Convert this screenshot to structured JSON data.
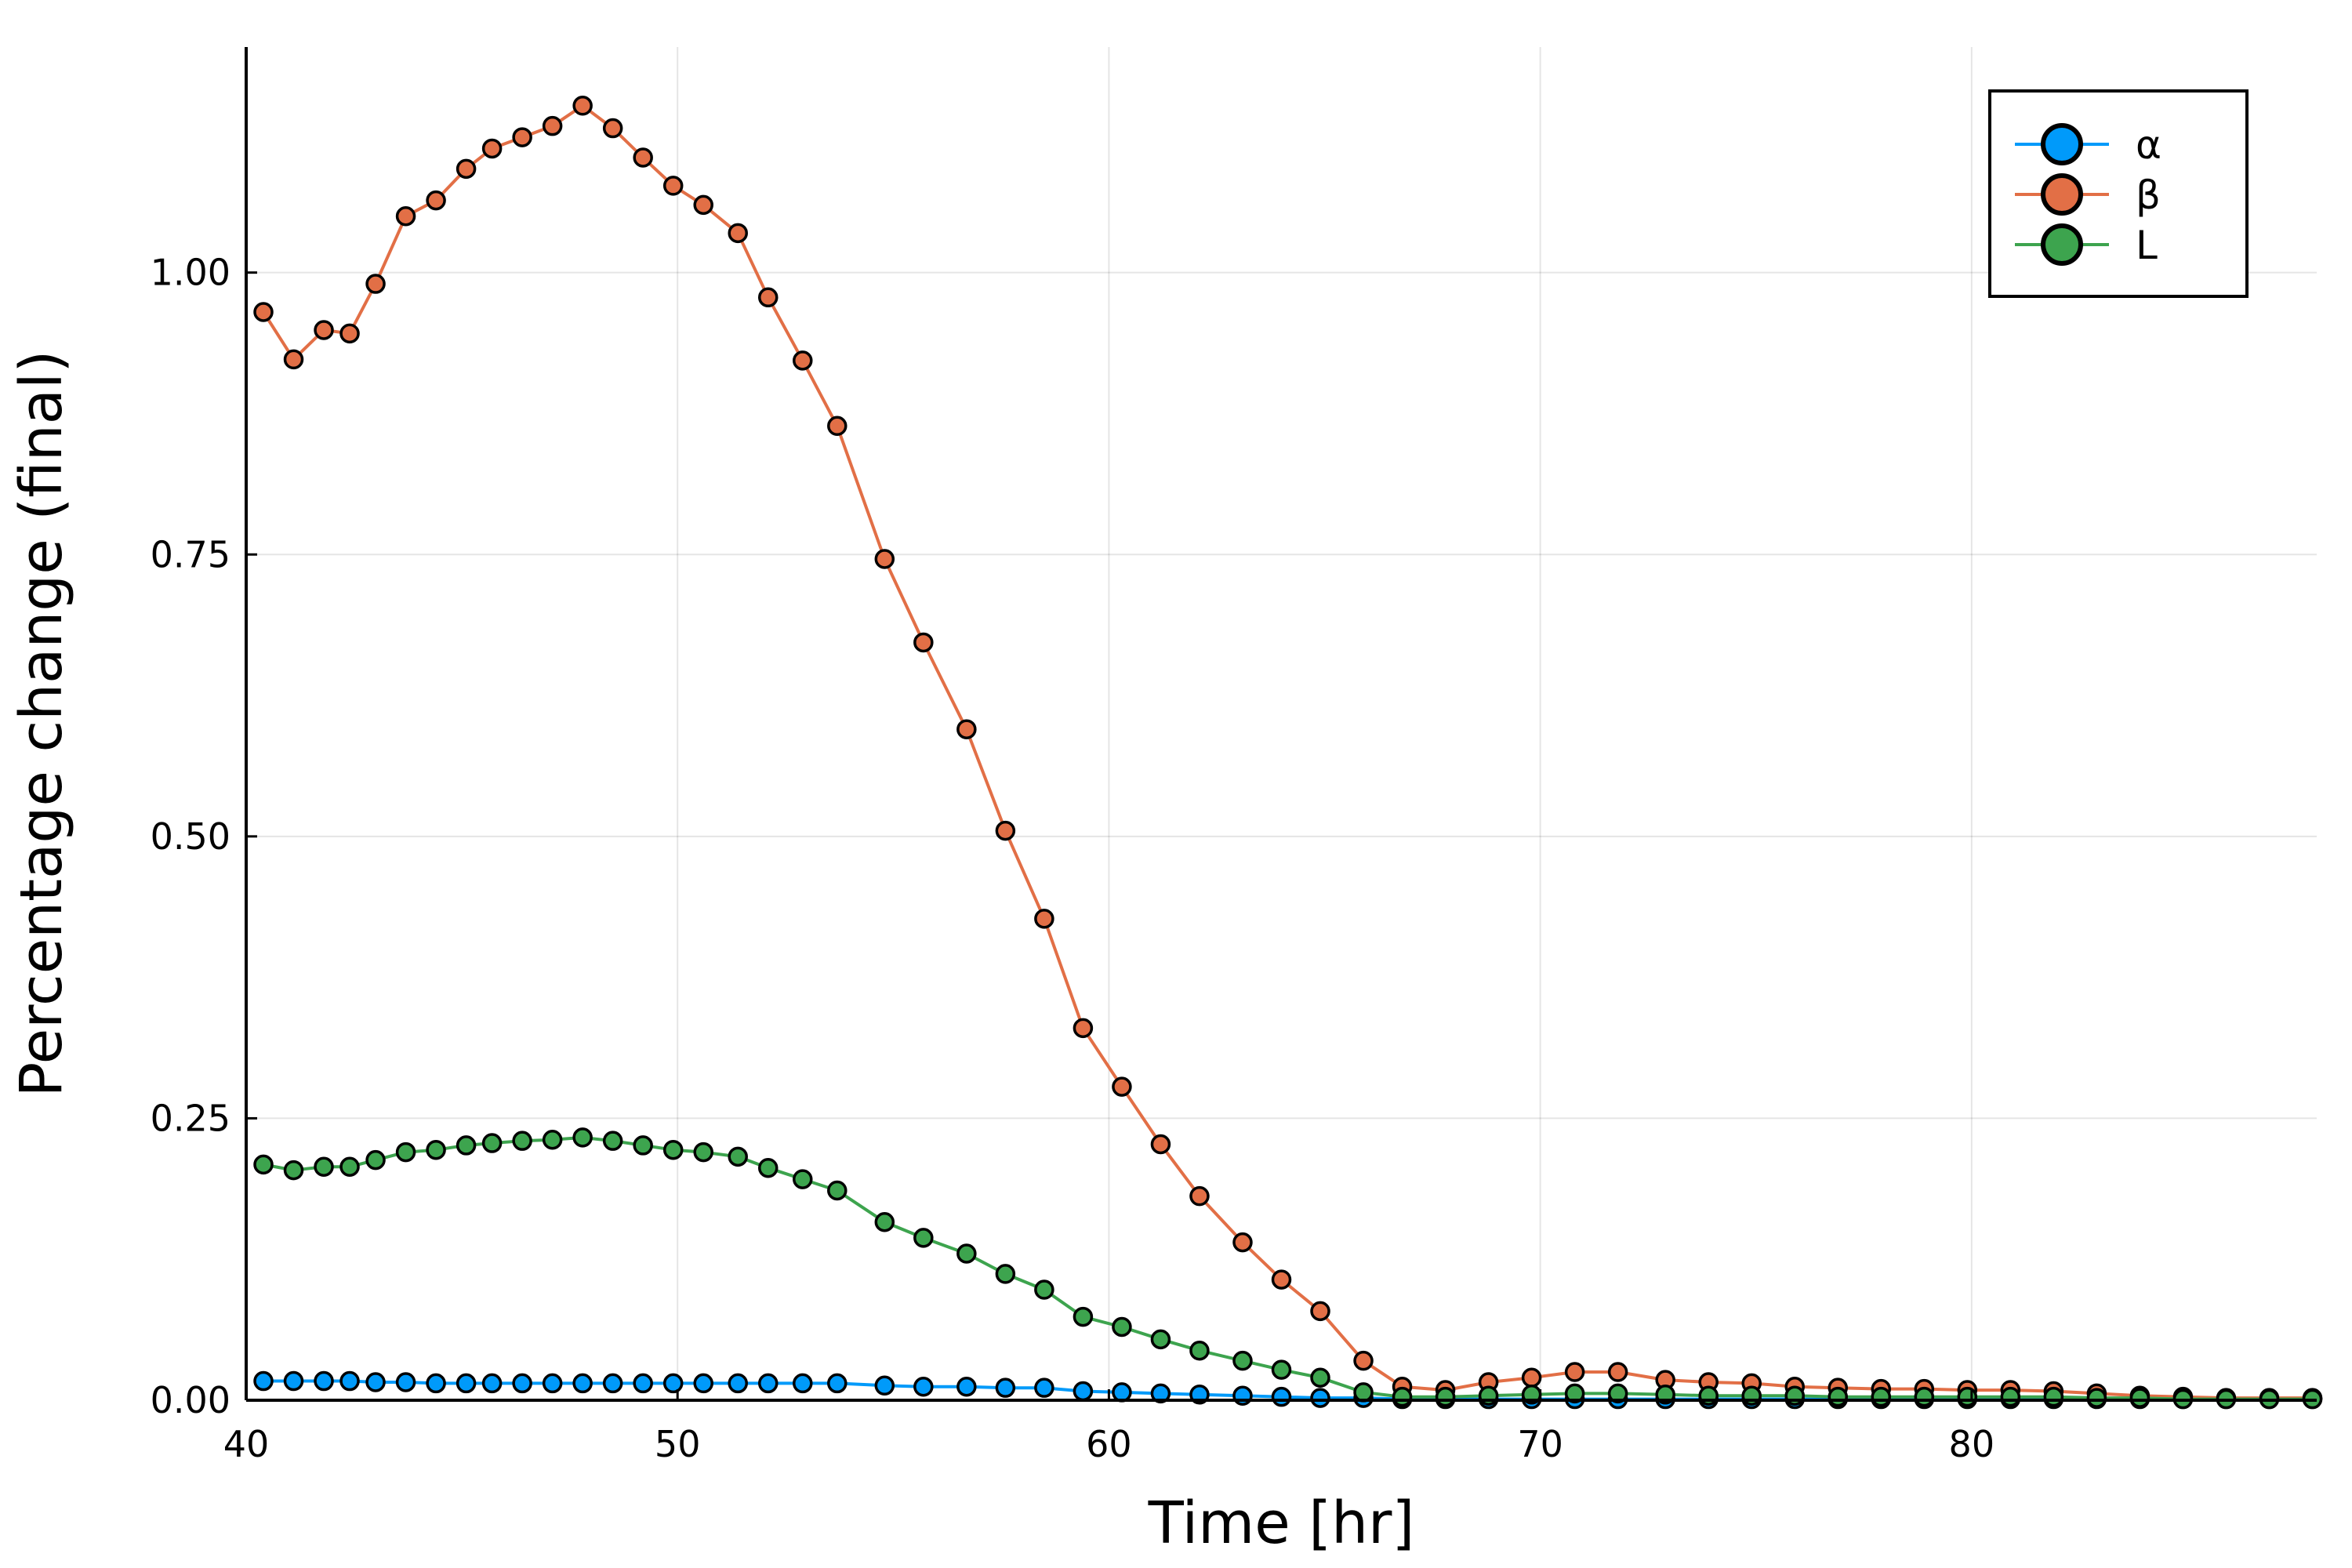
{
  "chart_data": {
    "type": "line",
    "xlabel": "Time [hr]",
    "ylabel": "Percentage change (final)",
    "xlim": [
      40,
      88
    ],
    "ylim": [
      0,
      1.2
    ],
    "xticks": [
      40,
      50,
      60,
      70,
      80
    ],
    "yticks": [
      0.0,
      0.25,
      0.5,
      0.75,
      1.0
    ],
    "xtick_labels": [
      "40",
      "50",
      "60",
      "70",
      "80"
    ],
    "ytick_labels": [
      "0.00",
      "0.25",
      "0.50",
      "0.75",
      "1.00"
    ],
    "grid": true,
    "legend": "top-right",
    "x": [
      40.4,
      41.1,
      41.8,
      42.4,
      43.0,
      43.7,
      44.4,
      45.1,
      45.7,
      46.4,
      47.1,
      47.8,
      48.5,
      49.2,
      49.9,
      50.6,
      51.4,
      52.1,
      52.9,
      53.7,
      54.8,
      55.7,
      56.7,
      57.6,
      58.5,
      59.4,
      60.3,
      61.2,
      62.1,
      63.1,
      64.0,
      64.9,
      65.9,
      66.8,
      67.8,
      68.8,
      69.8,
      70.8,
      71.8,
      72.9,
      73.9,
      74.9,
      75.9,
      76.9,
      77.9,
      78.9,
      79.9,
      80.9,
      81.9,
      82.9,
      83.9,
      84.9,
      85.9,
      86.9,
      87.9
    ],
    "series": [
      {
        "name": "α",
        "color": "#009AFA",
        "values": [
          0.017,
          0.017,
          0.017,
          0.017,
          0.016,
          0.016,
          0.015,
          0.015,
          0.015,
          0.015,
          0.015,
          0.015,
          0.015,
          0.015,
          0.015,
          0.015,
          0.015,
          0.015,
          0.015,
          0.015,
          0.013,
          0.012,
          0.012,
          0.011,
          0.011,
          0.008,
          0.007,
          0.006,
          0.005,
          0.004,
          0.003,
          0.002,
          0.002,
          0.001,
          0.001,
          0.001,
          0.001,
          0.001,
          0.001,
          0.001,
          0.001,
          0.001,
          0.001,
          0.001,
          0.001,
          0.001,
          0.001,
          0.001,
          0.001,
          0.001,
          0.001,
          0.001,
          0.001,
          0.001,
          0.001
        ]
      },
      {
        "name": "β",
        "color": "#E26F46",
        "values": [
          0.965,
          0.923,
          0.949,
          0.946,
          0.99,
          1.05,
          1.064,
          1.092,
          1.11,
          1.12,
          1.13,
          1.148,
          1.128,
          1.102,
          1.077,
          1.06,
          1.035,
          0.978,
          0.922,
          0.864,
          0.746,
          0.672,
          0.595,
          0.505,
          0.427,
          0.33,
          0.278,
          0.227,
          0.181,
          0.14,
          0.107,
          0.079,
          0.035,
          0.012,
          0.009,
          0.016,
          0.02,
          0.025,
          0.025,
          0.018,
          0.016,
          0.015,
          0.012,
          0.011,
          0.01,
          0.01,
          0.009,
          0.009,
          0.008,
          0.006,
          0.004,
          0.003,
          0.002,
          0.002,
          0.002
        ]
      },
      {
        "name": "L",
        "color": "#3DA44E",
        "values": [
          0.209,
          0.204,
          0.207,
          0.207,
          0.213,
          0.22,
          0.222,
          0.226,
          0.228,
          0.23,
          0.231,
          0.233,
          0.23,
          0.226,
          0.222,
          0.22,
          0.216,
          0.206,
          0.196,
          0.186,
          0.158,
          0.144,
          0.13,
          0.112,
          0.098,
          0.074,
          0.065,
          0.054,
          0.044,
          0.035,
          0.027,
          0.02,
          0.007,
          0.003,
          0.003,
          0.004,
          0.005,
          0.006,
          0.006,
          0.005,
          0.004,
          0.004,
          0.004,
          0.003,
          0.003,
          0.003,
          0.003,
          0.003,
          0.003,
          0.002,
          0.002,
          0.001,
          0.001,
          0.001,
          0.001
        ]
      }
    ]
  }
}
